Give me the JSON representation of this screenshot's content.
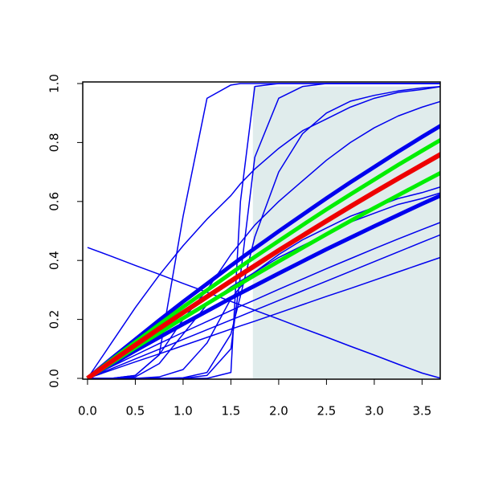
{
  "chart_data": {
    "type": "line",
    "x": [
      0,
      0.25,
      0.5,
      0.75,
      1,
      1.25,
      1.5,
      1.6,
      1.75,
      2,
      2.25,
      2.5,
      2.75,
      3,
      3.25,
      3.5,
      3.7
    ],
    "xlim": [
      -0.05,
      3.69
    ],
    "ylim": [
      0,
      1
    ],
    "xticks": [
      {
        "value": 0,
        "label": "0.0"
      },
      {
        "value": 0.5,
        "label": "0.5"
      },
      {
        "value": 1,
        "label": "1.0"
      },
      {
        "value": 1.5,
        "label": "1.5"
      },
      {
        "value": 2,
        "label": "2.0"
      },
      {
        "value": 2.5,
        "label": "2.5"
      },
      {
        "value": 3,
        "label": "3.0"
      },
      {
        "value": 3.5,
        "label": "3.5"
      }
    ],
    "yticks": [
      {
        "value": 0,
        "label": "0.0"
      },
      {
        "value": 0.2,
        "label": "0.2"
      },
      {
        "value": 0.4,
        "label": "0.4"
      },
      {
        "value": 0.6,
        "label": "0.6"
      },
      {
        "value": 0.8,
        "label": "0.8"
      },
      {
        "value": 1,
        "label": "1.0"
      }
    ],
    "shade": {
      "x": [
        1.73,
        3.69
      ],
      "y": [
        0,
        0.99
      ],
      "color": "#e0ecec"
    },
    "series": [
      {
        "color": "#0000ee",
        "width": 1.5,
        "values": [
          0.444,
          0.414,
          0.383,
          0.353,
          0.322,
          0.292,
          0.261,
          0.249,
          0.231,
          0.201,
          0.17,
          0.14,
          0.109,
          0.079,
          0.048,
          0.018,
          0
        ]
      },
      {
        "color": "#0000ee",
        "width": 1.5,
        "values": [
          0,
          0,
          0.01,
          0.08,
          0.55,
          0.95,
          0.995,
          1,
          1,
          1,
          1,
          1,
          1,
          1,
          1,
          1,
          1
        ]
      },
      {
        "color": "#0000ee",
        "width": 1.5,
        "values": [
          0,
          0,
          0,
          0,
          0,
          0,
          0.02,
          0.6,
          0.99,
          1,
          1,
          1,
          1,
          1,
          1,
          1,
          1
        ]
      },
      {
        "color": "#0000ee",
        "width": 1.5,
        "values": [
          0,
          0,
          0,
          0,
          0,
          0.01,
          0.1,
          0.35,
          0.75,
          0.95,
          0.99,
          1,
          1,
          1,
          1,
          1,
          1
        ]
      },
      {
        "color": "#0000ee",
        "width": 1.5,
        "values": [
          0,
          0,
          0,
          0,
          0.002,
          0.02,
          0.15,
          0.28,
          0.48,
          0.7,
          0.83,
          0.9,
          0.94,
          0.96,
          0.975,
          0.985,
          0.99
        ]
      },
      {
        "color": "#0000ee",
        "width": 1.5,
        "values": [
          0,
          0.12,
          0.24,
          0.35,
          0.45,
          0.54,
          0.62,
          0.66,
          0.71,
          0.78,
          0.84,
          0.88,
          0.92,
          0.95,
          0.97,
          0.98,
          0.99
        ]
      },
      {
        "color": "#0000ee",
        "width": 1.5,
        "values": [
          0,
          0,
          0.01,
          0.08,
          0.2,
          0.3,
          0.42,
          0.46,
          0.52,
          0.6,
          0.67,
          0.74,
          0.8,
          0.85,
          0.89,
          0.92,
          0.94
        ]
      },
      {
        "color": "#0000ee",
        "width": 5,
        "values": [
          0,
          0.067,
          0.132,
          0.197,
          0.26,
          0.321,
          0.382,
          0.406,
          0.441,
          0.499,
          0.555,
          0.611,
          0.665,
          0.717,
          0.769,
          0.819,
          0.858
        ]
      },
      {
        "color": "#0000ee",
        "width": 5,
        "values": [
          0,
          0.047,
          0.094,
          0.139,
          0.184,
          0.228,
          0.272,
          0.289,
          0.314,
          0.356,
          0.397,
          0.438,
          0.477,
          0.516,
          0.554,
          0.592,
          0.621
        ]
      },
      {
        "color": "#0000ee",
        "width": 1.5,
        "values": [
          0,
          0.04,
          0.079,
          0.118,
          0.156,
          0.193,
          0.23,
          0.245,
          0.266,
          0.302,
          0.337,
          0.372,
          0.406,
          0.44,
          0.473,
          0.505,
          0.53
        ]
      },
      {
        "color": "#0000ee",
        "width": 1.5,
        "values": [
          0,
          0.033,
          0.066,
          0.099,
          0.132,
          0.165,
          0.198,
          0.211,
          0.231,
          0.264,
          0.297,
          0.33,
          0.363,
          0.396,
          0.429,
          0.462,
          0.488
        ]
      },
      {
        "color": "#0000ee",
        "width": 1.5,
        "values": [
          0,
          0.028,
          0.056,
          0.083,
          0.111,
          0.139,
          0.167,
          0.178,
          0.194,
          0.222,
          0.25,
          0.278,
          0.305,
          0.333,
          0.361,
          0.389,
          0.411
        ]
      },
      {
        "color": "#0000ee",
        "width": 1.5,
        "values": [
          0,
          0,
          0.005,
          0.05,
          0.15,
          0.25,
          0.31,
          0.33,
          0.36,
          0.41,
          0.45,
          0.49,
          0.53,
          0.56,
          0.59,
          0.61,
          0.63
        ]
      },
      {
        "color": "#0000ee",
        "width": 1.5,
        "values": [
          0,
          0,
          0,
          0.005,
          0.03,
          0.12,
          0.27,
          0.31,
          0.36,
          0.42,
          0.47,
          0.51,
          0.55,
          0.58,
          0.61,
          0.63,
          0.65
        ]
      },
      {
        "color": "#00ee00",
        "width": 5,
        "values": [
          0,
          0.062,
          0.123,
          0.183,
          0.242,
          0.299,
          0.356,
          0.379,
          0.412,
          0.466,
          0.52,
          0.573,
          0.624,
          0.674,
          0.724,
          0.772,
          0.81
        ]
      },
      {
        "color": "#00ee00",
        "width": 5,
        "values": [
          0,
          0.052,
          0.104,
          0.154,
          0.204,
          0.253,
          0.302,
          0.321,
          0.35,
          0.397,
          0.443,
          0.489,
          0.534,
          0.578,
          0.621,
          0.664,
          0.698
        ]
      },
      {
        "color": "#ee0000",
        "width": 6,
        "values": [
          0,
          0.057,
          0.113,
          0.169,
          0.223,
          0.277,
          0.33,
          0.351,
          0.382,
          0.434,
          0.484,
          0.534,
          0.583,
          0.631,
          0.678,
          0.724,
          0.761
        ]
      }
    ]
  }
}
